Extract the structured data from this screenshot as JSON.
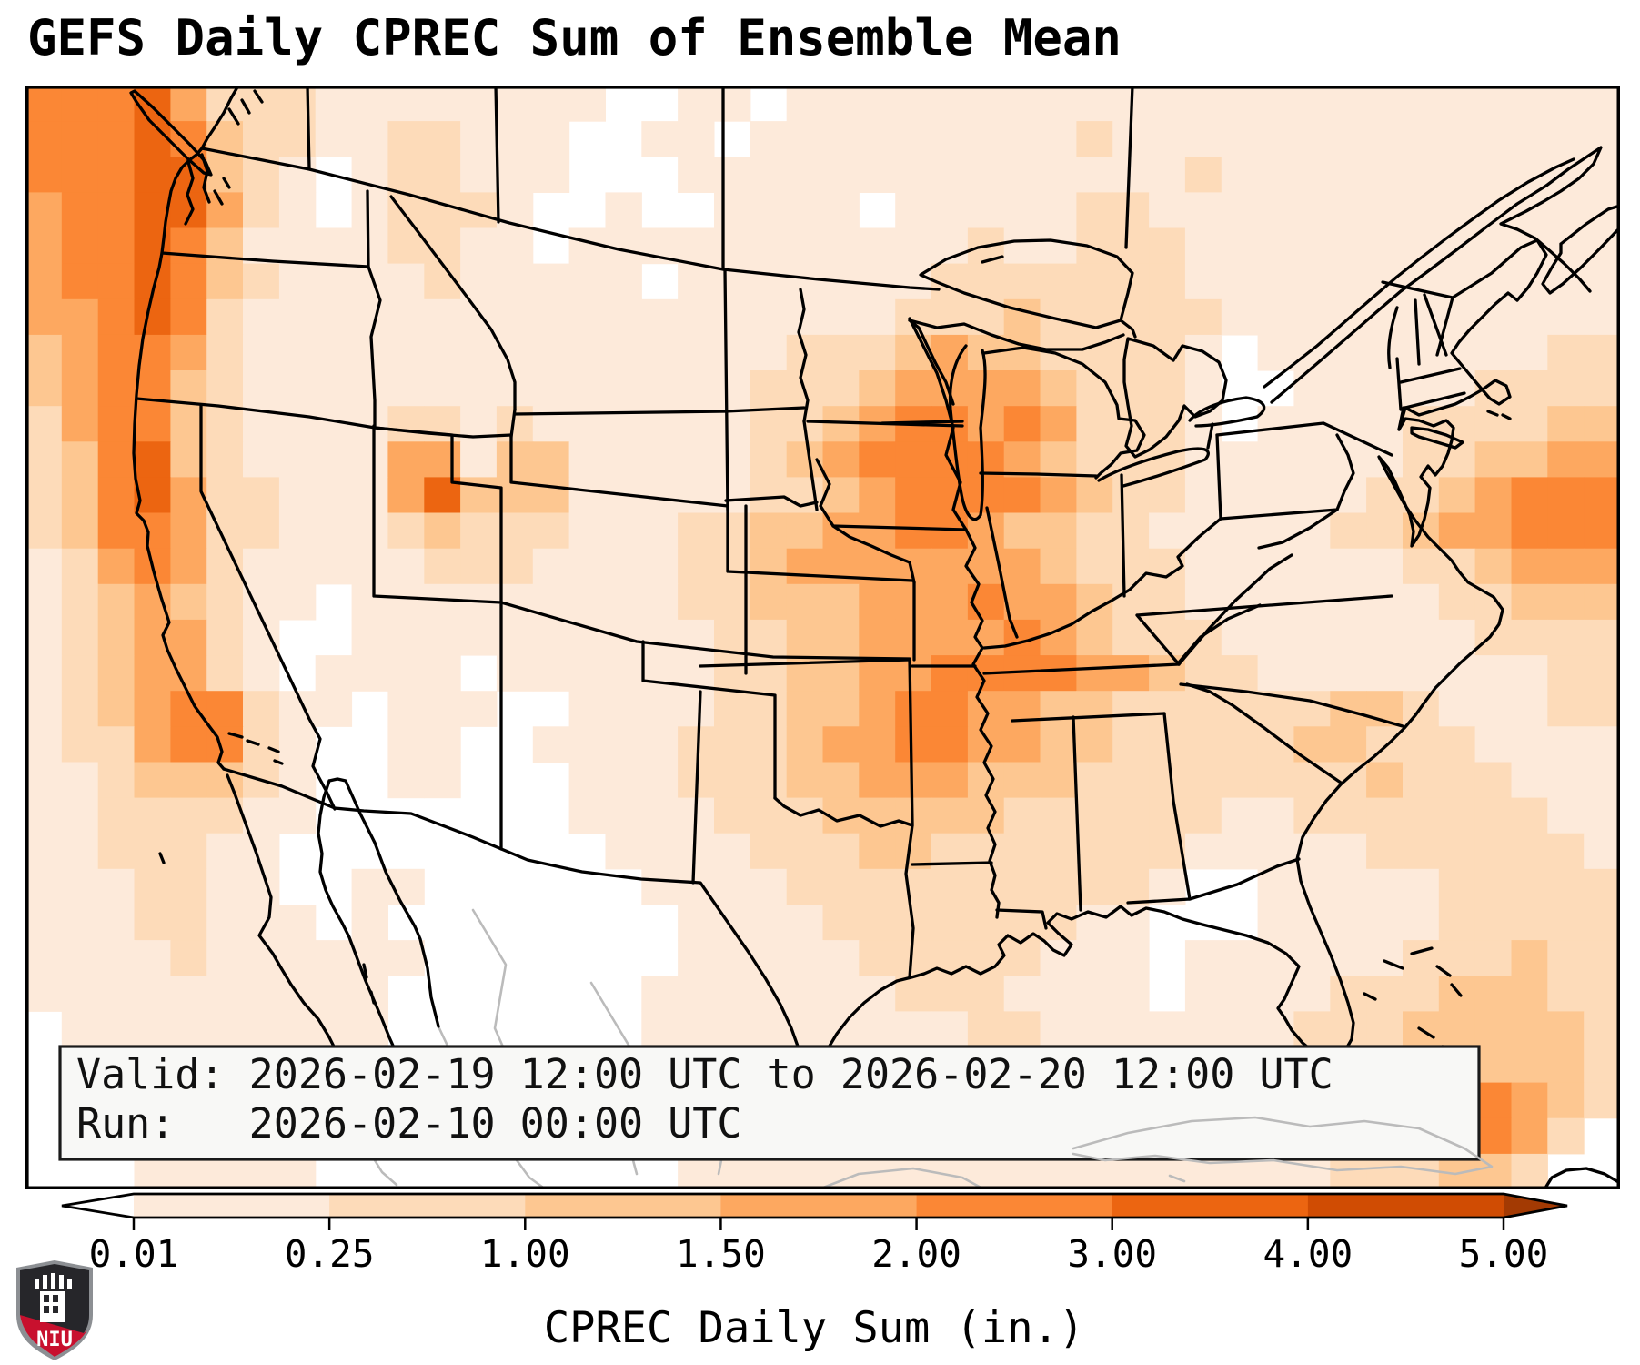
{
  "title": "GEFS Daily CPREC Sum of Ensemble Mean",
  "info_box": {
    "valid_line": "Valid: 2026-02-19 12:00 UTC to 2026-02-20 12:00 UTC",
    "run_line": "Run:   2026-02-10 00:00 UTC"
  },
  "branding": {
    "logo_text": "NIU"
  },
  "chart_data": {
    "type": "heatmap",
    "title": "GEFS Daily CPREC Sum of Ensemble Mean",
    "colorbar_label": "CPREC Daily Sum (in.)",
    "valid": "2026-02-19 12:00 UTC to 2026-02-20 12:00 UTC",
    "run": "2026-02-10 00:00 UTC",
    "levels_in": [
      0.01,
      0.25,
      1.0,
      1.5,
      2.0,
      3.0,
      4.0,
      5.0
    ],
    "tick_labels": [
      "0.01",
      "0.25",
      "1.00",
      "1.50",
      "2.00",
      "3.00",
      "4.00",
      "5.00"
    ],
    "extend": "both",
    "palette": [
      "#ffffff",
      "#fdeada",
      "#fddbb9",
      "#fdc791",
      "#fda860",
      "#fb8735",
      "#ec6511",
      "#d04c03",
      "#a33a03"
    ],
    "segment_colors": [
      "#fdeada",
      "#fddbb9",
      "#fdc791",
      "#fda860",
      "#fb8735",
      "#ec6511",
      "#d04c03"
    ],
    "under_color": "#ffffff",
    "over_color": "#a33a03",
    "grid_note": "44x31 cells over map area; each char is palette level 0-8 (0=<0.01in white ... 8=>5in)",
    "grid": [
      "55564222111111110011011111111111111111111111",
      "55565322112211100110111111111211111111111111",
      "55566321012211100011111111111111211111111111",
      "45566421012221001001111011111221111111111111",
      "45565311112211011111111111211222111111111111",
      "45565321111211111011111112222222111111111111",
      "44565211111111111111111122232222211111111111",
      "34554211111111111111122234332222101111111122",
      "34553211111111111111222344443222100111112222",
      "24553211112212111111223455454222101111222233",
      "23563211114413311111234555543222111111223344",
      "23564221114633311111223455554322111112234555",
      "23554221112322211122334455433221111122344555",
      "12454211111222111122344444443222111111223444",
      "12343211011111111122333444544322111111122333",
      "12344210011111111112233444454322211111112222",
      "12344210111101111112233445555443221111111122",
      "12345521101110011112233455443322222233211122",
      "12245521001100111122234455443322222332221111",
      "11233321001100011122233444333222222223222111",
      "11222211000000011112223333322222211222222211",
      "11222110000000001111222332222222111112222221",
      "11122110011000000111122222222221001111122222",
      "11122111010000000011112222222110001111122222",
      "11112111111000000011111222221110111111222322",
      "11111111110000000111111122211110111122233322",
      "01111111110000000111111111221111111222333332",
      "00111111100000000111111111111111111222333332",
      "00111111100000000111111111111111111223455432",
      "00011111100000000011111111111111111222355420",
      "00011111000000000011111111111111111122233200"
    ]
  }
}
